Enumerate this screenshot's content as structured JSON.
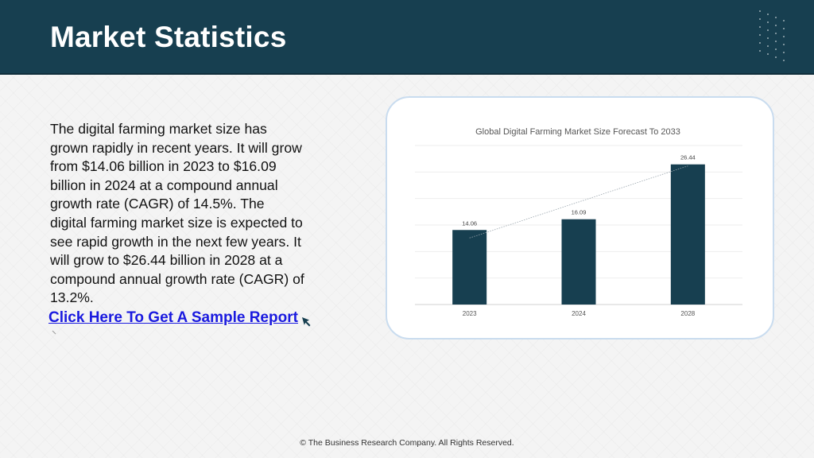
{
  "header": {
    "title": "Market Statistics"
  },
  "content": {
    "paragraph": "The digital farming market size has grown rapidly in recent years. It will grow from $14.06 billion in 2023 to $16.09 billion in 2024 at a compound annual growth rate (CAGR) of 14.5%. The digital farming market size is expected to see rapid growth in the next few years. It will grow to $26.44 billion in 2028 at a compound annual growth rate (CAGR) of 13.2%.",
    "link_label": "Click Here To Get A Sample Report",
    "link_icon": "cursor-arrow-icon"
  },
  "chart_data": {
    "type": "bar",
    "title": "Global Digital Farming Market Size Forecast To 2033",
    "categories": [
      "2023",
      "2024",
      "2028"
    ],
    "values": [
      14.06,
      16.09,
      26.44
    ],
    "data_labels": [
      "14.06",
      "16.09",
      "26.44"
    ],
    "ylim": [
      0,
      30
    ],
    "trendline": true,
    "grid": true,
    "bar_color": "#173f50",
    "xlabel": "",
    "ylabel": ""
  },
  "footer": {
    "copyright": "© The Business Research Company. All Rights Reserved."
  },
  "colors": {
    "header_bg": "#173f50",
    "link": "#1a1adf",
    "card_border": "#c9dcef"
  }
}
